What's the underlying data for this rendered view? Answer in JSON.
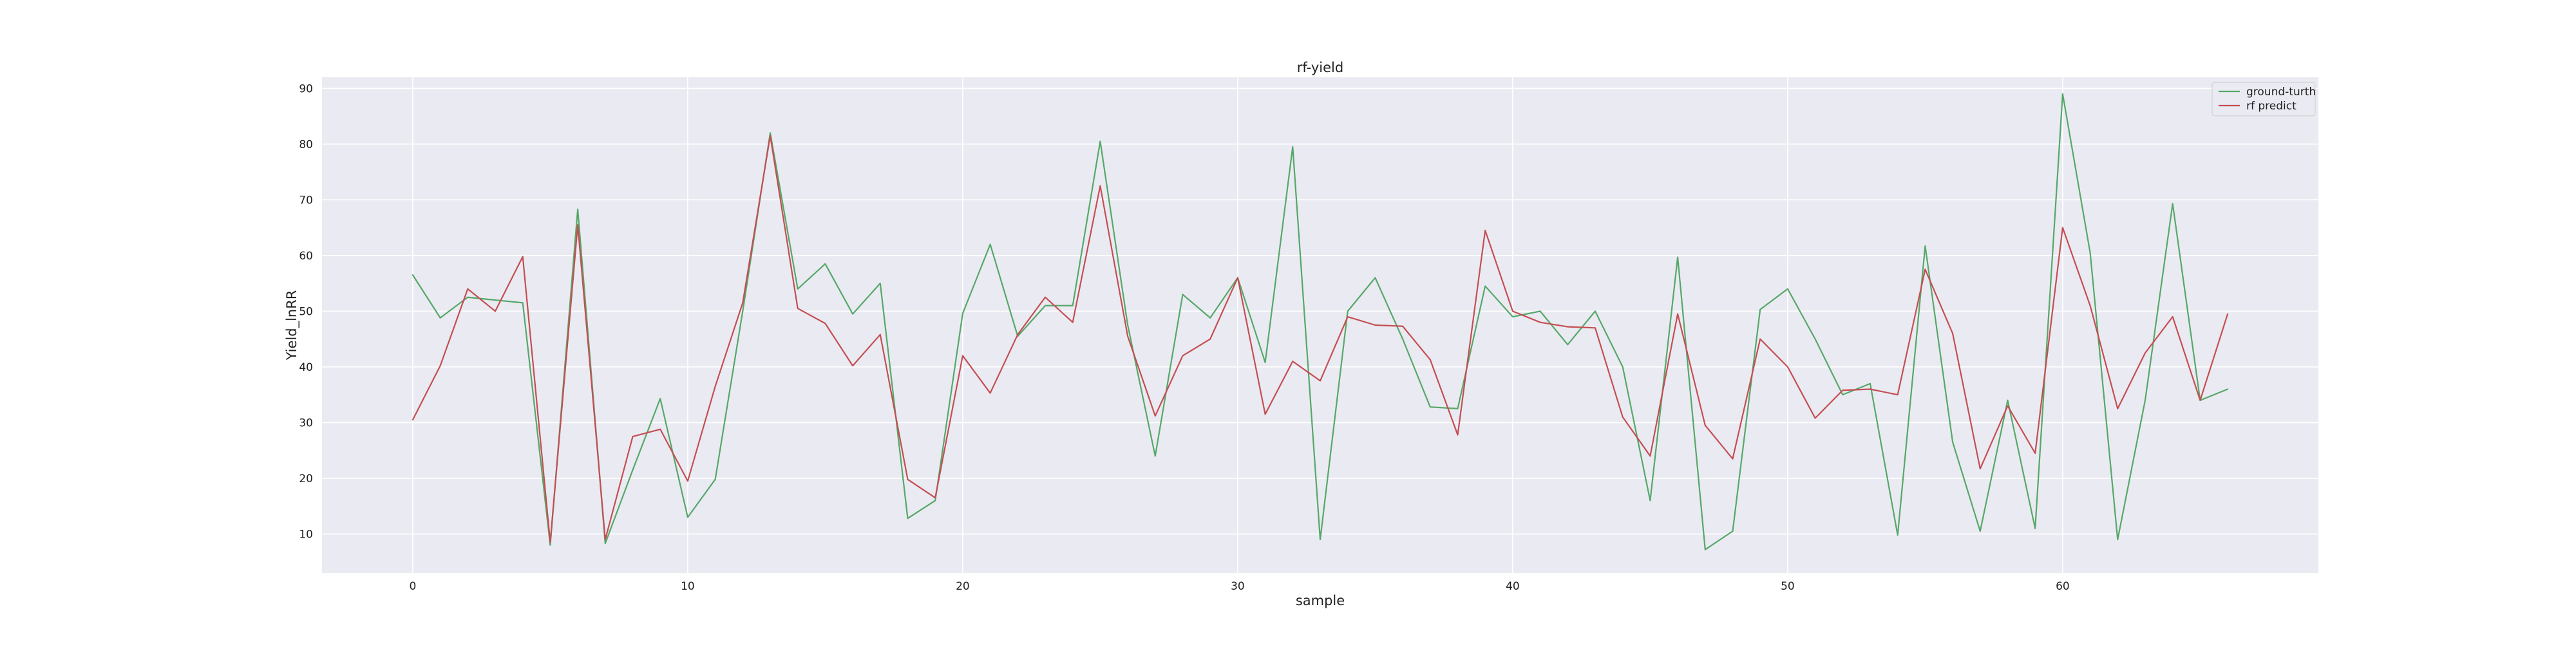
{
  "chart_data": {
    "type": "line",
    "title": "rf-yield",
    "xlabel": "sample",
    "ylabel": "Yield_lnRR",
    "xlim": [
      -3.3,
      69.3
    ],
    "ylim": [
      3.0,
      92.0
    ],
    "xticks": [
      0,
      10,
      20,
      30,
      40,
      50,
      60
    ],
    "yticks": [
      10,
      20,
      30,
      40,
      50,
      60,
      70,
      80,
      90
    ],
    "grid": true,
    "legend_position": "top-right",
    "background_color": "#eaeaf2",
    "grid_color": "#ffffff",
    "series": [
      {
        "name": "ground-turth",
        "color": "#55a868",
        "values": [
          56.5,
          48.8,
          52.5,
          52.0,
          51.5,
          8.0,
          68.3,
          8.3,
          21.5,
          34.3,
          13.0,
          19.8,
          50.0,
          82.0,
          54.0,
          58.5,
          49.5,
          55.0,
          12.8,
          16.0,
          49.6,
          62.0,
          45.5,
          51.0,
          51.0,
          80.5,
          47.5,
          24.0,
          53.0,
          48.8,
          56.0,
          40.8,
          79.5,
          9.0,
          50.0,
          56.0,
          45.0,
          32.8,
          32.5,
          54.5,
          49.0,
          50.0,
          44.0,
          50.0,
          40.0,
          16.0,
          59.7,
          7.2,
          10.5,
          50.3,
          54.0,
          45.0,
          35.0,
          37.0,
          9.8,
          61.7,
          26.5,
          10.5,
          34.0,
          11.0,
          89.0,
          60.5,
          9.0,
          34.0,
          69.3,
          34.0,
          36.0
        ]
      },
      {
        "name": "rf predict",
        "color": "#c44e52",
        "values": [
          30.5,
          40.2,
          54.0,
          50.0,
          59.8,
          8.5,
          65.5,
          9.0,
          27.5,
          28.8,
          19.5,
          36.5,
          51.5,
          81.5,
          50.5,
          47.8,
          40.2,
          45.8,
          19.8,
          16.5,
          42.0,
          35.3,
          45.8,
          52.5,
          48.0,
          72.5,
          45.5,
          31.2,
          42.0,
          45.0,
          56.0,
          31.5,
          41.0,
          37.5,
          49.0,
          47.5,
          47.3,
          41.3,
          27.8,
          64.5,
          50.0,
          48.0,
          47.2,
          47.0,
          31.0,
          24.0,
          49.5,
          29.5,
          23.5,
          45.0,
          40.0,
          30.8,
          35.8,
          36.0,
          35.0,
          57.5,
          46.0,
          21.7,
          33.0,
          24.5,
          65.0,
          51.0,
          32.5,
          42.5,
          49.0,
          34.0,
          49.5
        ]
      }
    ]
  }
}
